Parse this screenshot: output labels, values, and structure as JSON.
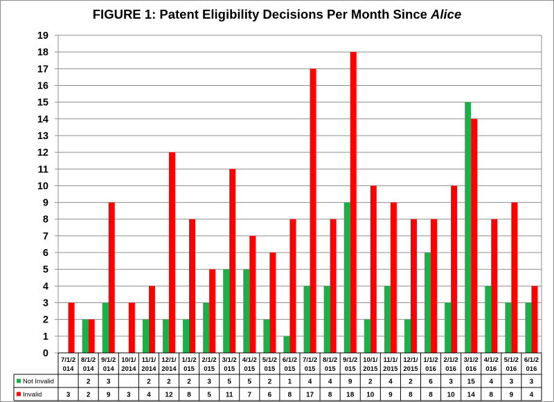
{
  "title_main": "FIGURE 1:  Patent Eligibility Decisions Per Month Since ",
  "title_italic": "Alice",
  "colors": {
    "not_invalid": "#1ab04a",
    "invalid": "#ff0000",
    "grid": "#8c8c8c"
  },
  "chart_data": {
    "type": "bar",
    "title": "FIGURE 1:  Patent Eligibility Decisions Per Month Since Alice",
    "categories": [
      [
        "7/1/2",
        "014"
      ],
      [
        "8/1/2",
        "014"
      ],
      [
        "9/1/2",
        "014"
      ],
      [
        "10/1/",
        "2014"
      ],
      [
        "11/1/",
        "2014"
      ],
      [
        "12/1/",
        "2014"
      ],
      [
        "1/1/2",
        "015"
      ],
      [
        "2/1/2",
        "015"
      ],
      [
        "3/1/2",
        "015"
      ],
      [
        "4/1/2",
        "015"
      ],
      [
        "5/1/2",
        "015"
      ],
      [
        "6/1/2",
        "015"
      ],
      [
        "7/1/2",
        "015"
      ],
      [
        "8/1/2",
        "015"
      ],
      [
        "9/1/2",
        "015"
      ],
      [
        "10/1/",
        "2015"
      ],
      [
        "11/1/",
        "2015"
      ],
      [
        "12/1/",
        "2015"
      ],
      [
        "1/1/2",
        "016"
      ],
      [
        "2/1/2",
        "016"
      ],
      [
        "3/1/2",
        "016"
      ],
      [
        "4/1/2",
        "016"
      ],
      [
        "5/1/2",
        "016"
      ],
      [
        "6/1/2",
        "016"
      ]
    ],
    "series": [
      {
        "name": "Not Invalid",
        "values": [
          null,
          2,
          3,
          null,
          2,
          2,
          2,
          3,
          5,
          5,
          2,
          1,
          4,
          4,
          9,
          2,
          4,
          2,
          6,
          3,
          15,
          4,
          3,
          3
        ]
      },
      {
        "name": "Invalid",
        "values": [
          3,
          2,
          9,
          3,
          4,
          12,
          8,
          5,
          11,
          7,
          6,
          8,
          17,
          8,
          18,
          10,
          9,
          8,
          8,
          10,
          14,
          8,
          9,
          4
        ]
      }
    ],
    "ylim": [
      0,
      19
    ],
    "yticks": [
      0,
      1,
      2,
      3,
      4,
      5,
      6,
      7,
      8,
      9,
      10,
      11,
      12,
      13,
      14,
      15,
      16,
      17,
      18,
      19
    ],
    "grid": true,
    "legend": "data-table"
  }
}
